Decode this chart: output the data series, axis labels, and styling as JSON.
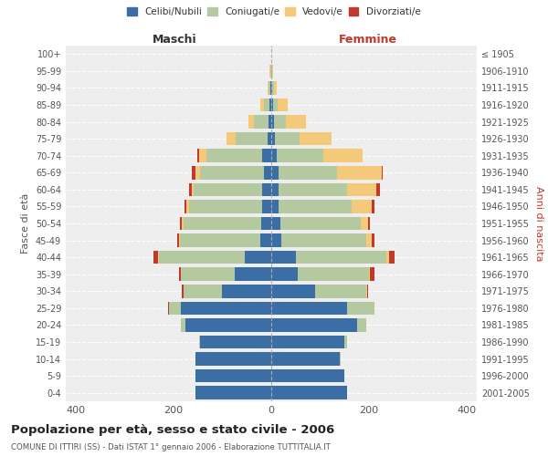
{
  "age_groups": [
    "0-4",
    "5-9",
    "10-14",
    "15-19",
    "20-24",
    "25-29",
    "30-34",
    "35-39",
    "40-44",
    "45-49",
    "50-54",
    "55-59",
    "60-64",
    "65-69",
    "70-74",
    "75-79",
    "80-84",
    "85-89",
    "90-94",
    "95-99",
    "100+"
  ],
  "birth_years": [
    "2001-2005",
    "1996-2000",
    "1991-1995",
    "1986-1990",
    "1981-1985",
    "1976-1980",
    "1971-1975",
    "1966-1970",
    "1961-1965",
    "1956-1960",
    "1951-1955",
    "1946-1950",
    "1941-1945",
    "1936-1940",
    "1931-1935",
    "1926-1930",
    "1921-1925",
    "1916-1920",
    "1911-1915",
    "1906-1910",
    "≤ 1905"
  ],
  "male": {
    "celibi": [
      155,
      155,
      155,
      145,
      175,
      185,
      100,
      75,
      55,
      22,
      20,
      18,
      18,
      15,
      18,
      8,
      5,
      3,
      1,
      0,
      0
    ],
    "coniugati": [
      0,
      0,
      0,
      2,
      10,
      25,
      80,
      110,
      175,
      165,
      160,
      150,
      140,
      130,
      115,
      65,
      30,
      12,
      4,
      2,
      0
    ],
    "vedovi": [
      0,
      0,
      0,
      0,
      0,
      0,
      0,
      0,
      1,
      2,
      3,
      5,
      5,
      10,
      15,
      18,
      12,
      8,
      3,
      1,
      0
    ],
    "divorziati": [
      0,
      0,
      0,
      0,
      0,
      1,
      2,
      3,
      10,
      3,
      3,
      5,
      5,
      8,
      3,
      0,
      0,
      0,
      0,
      0,
      0
    ]
  },
  "female": {
    "nubili": [
      155,
      150,
      140,
      150,
      175,
      155,
      90,
      55,
      50,
      20,
      18,
      15,
      15,
      15,
      12,
      8,
      5,
      3,
      1,
      0,
      0
    ],
    "coniugate": [
      0,
      0,
      1,
      5,
      20,
      55,
      105,
      145,
      185,
      175,
      165,
      150,
      140,
      120,
      95,
      50,
      25,
      10,
      5,
      2,
      0
    ],
    "vedove": [
      0,
      0,
      0,
      0,
      0,
      0,
      1,
      2,
      5,
      10,
      15,
      40,
      60,
      90,
      80,
      65,
      40,
      20,
      5,
      2,
      0
    ],
    "divorziate": [
      0,
      0,
      0,
      0,
      0,
      0,
      2,
      8,
      12,
      5,
      3,
      5,
      8,
      3,
      0,
      0,
      0,
      0,
      0,
      0,
      0
    ]
  },
  "colors": {
    "celibi": "#3a6ea5",
    "coniugati": "#b5c9a0",
    "vedovi": "#f5c97a",
    "divorziati": "#c0392b"
  },
  "xlim": 420,
  "title": "Popolazione per età, sesso e stato civile - 2006",
  "subtitle": "COMUNE DI ITTIRI (SS) - Dati ISTAT 1° gennaio 2006 - Elaborazione TUTTITALIA.IT",
  "ylabel_left": "Fasce di età",
  "ylabel_right": "Anni di nascita",
  "xlabel_left": "Maschi",
  "xlabel_right": "Femmine",
  "legend_labels": [
    "Celibi/Nubili",
    "Coniugati/e",
    "Vedovi/e",
    "Divorziati/e"
  ],
  "background_color": "#ffffff",
  "axes_bg": "#eeeeee"
}
